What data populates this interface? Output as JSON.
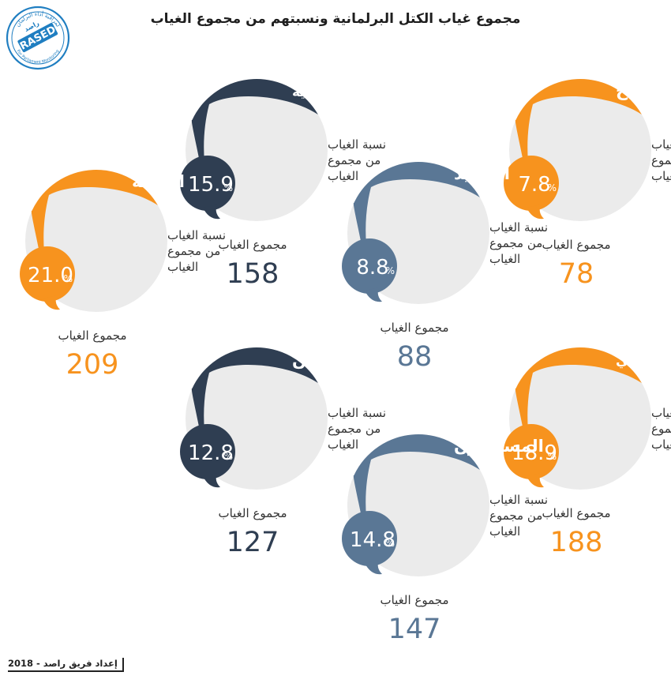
{
  "title": "مجموع غياب الكتل البرلمانية ونسبتهم من مجموع الغياب",
  "footer": "إعداد فريق راصد - 2018",
  "logo": {
    "main_text": "RASED",
    "arabic_text": "راصد",
    "sub_arabic": "لمراقبة أداء البرلمان",
    "sub_english": "For Parliament Monitoring",
    "color": "#1f7ec1"
  },
  "colors": {
    "orange": "#f7931e",
    "navy": "#2f3e52",
    "slate": "#5a7795",
    "bubble": "#ebebeb",
    "label": "#333333"
  },
  "chart_data": {
    "type": "bubble-infographic",
    "title": "مجموع غياب الكتل البرلمانية ونسبتهم من مجموع الغياب",
    "ratio_label": "نسبة الغياب من مجموع الغياب",
    "total_label": "مجموع الغياب",
    "percent_unit": "%",
    "blocs": [
      {
        "name": "الاصلاح",
        "percent": "7.8",
        "total": "78",
        "color": "orange"
      },
      {
        "name": "الديمقراطية",
        "percent": "15.9",
        "total": "158",
        "color": "navy"
      },
      {
        "name": "التجديد",
        "percent": "8.8",
        "total": "88",
        "color": "slate"
      },
      {
        "name": "العدالة",
        "percent": "21.0",
        "total": "209",
        "color": "orange"
      },
      {
        "name": "الوفاق الوطني",
        "percent": "18.9",
        "total": "188",
        "color": "orange"
      },
      {
        "name": "وطن",
        "percent": "12.8",
        "total": "127",
        "color": "navy"
      },
      {
        "name": "المستقلون",
        "percent": "14.8",
        "total": "147",
        "color": "slate"
      }
    ]
  }
}
